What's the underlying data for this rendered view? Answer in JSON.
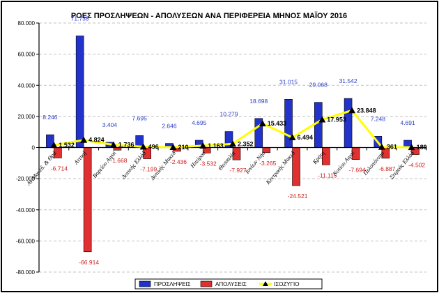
{
  "chart_data": {
    "type": "bar",
    "title": "ΡΟΕΣ ΠΡΟΣΛΗΨΕΩΝ - ΑΠΟΛΥΣΕΩΝ ΑΝΑ ΠΕΡΙΦΕΡΕΙΑ ΜΗΝΟΣ ΜΑΪΟΥ 2016",
    "categories": [
      "Αν.Μακεδ. & Θρά",
      "Αττική",
      "Βορείου Αιγαί",
      "Δυτικής Ελλάδ",
      "Δυτικής Μακεδ",
      "Ηπείρου",
      "Θεσσαλία",
      "Ιονίων Νήσ",
      "Κεντρικής Μακεδ",
      "Κρήτη",
      "Νοτίου Αιγαί",
      "Πελοπόννησ",
      "Στερεάς Ελλάδ"
    ],
    "series": [
      {
        "name": "ΠΡΟΣΛΗΨΕΙΣ",
        "type": "bar",
        "color": "#2233cc",
        "values": [
          8246,
          71738,
          3404,
          7695,
          2646,
          4695,
          10279,
          18698,
          31015,
          29068,
          31542,
          7248,
          4691
        ],
        "labels": [
          "8.246",
          "71.738",
          "3.404",
          "7.695",
          "2.646",
          "4.695",
          "10.279",
          "18.698",
          "31.015",
          "29.068",
          "31.542",
          "7.248",
          "4.691"
        ]
      },
      {
        "name": "ΑΠΟΛΥΣΕΙΣ",
        "type": "bar",
        "color": "#e03030",
        "values": [
          -6714,
          -66914,
          -1668,
          -7199,
          -2436,
          -3532,
          -7927,
          -3265,
          -24521,
          -11115,
          -7694,
          -6887,
          -4502
        ],
        "labels": [
          "-6.714",
          "-66.914",
          "-1.668",
          "-7.199",
          "-2.436",
          "-3.532",
          "-7.927",
          "-3.265",
          "-24.521",
          "-11.115",
          "-7.694",
          "-6.887",
          "-4.502"
        ]
      },
      {
        "name": "ΙΣΟΖΥΓΙΟ",
        "type": "line",
        "color": "#ffff00",
        "marker_color": "#000000",
        "values": [
          1532,
          4824,
          1736,
          496,
          210,
          1163,
          2352,
          15433,
          6494,
          17953,
          23848,
          361,
          189
        ],
        "labels": [
          "1.532",
          "4.824",
          "1.736",
          "496",
          "210",
          "1.163",
          "2.352",
          "15.433",
          "6.494",
          "17.953",
          "23.848",
          "361",
          "189"
        ]
      }
    ],
    "ylim": [
      -80000,
      80000
    ],
    "yticks": [
      80000,
      60000,
      40000,
      20000,
      0,
      -20000,
      -40000,
      -60000,
      -80000
    ],
    "ytick_labels": [
      "80.000",
      "60.000",
      "40.000",
      "20.000",
      "0",
      "-20.000",
      "-40.000",
      "-60.000",
      "-80.000"
    ],
    "grid": true,
    "legend": "bottom-center",
    "xlabel": "",
    "ylabel": ""
  }
}
